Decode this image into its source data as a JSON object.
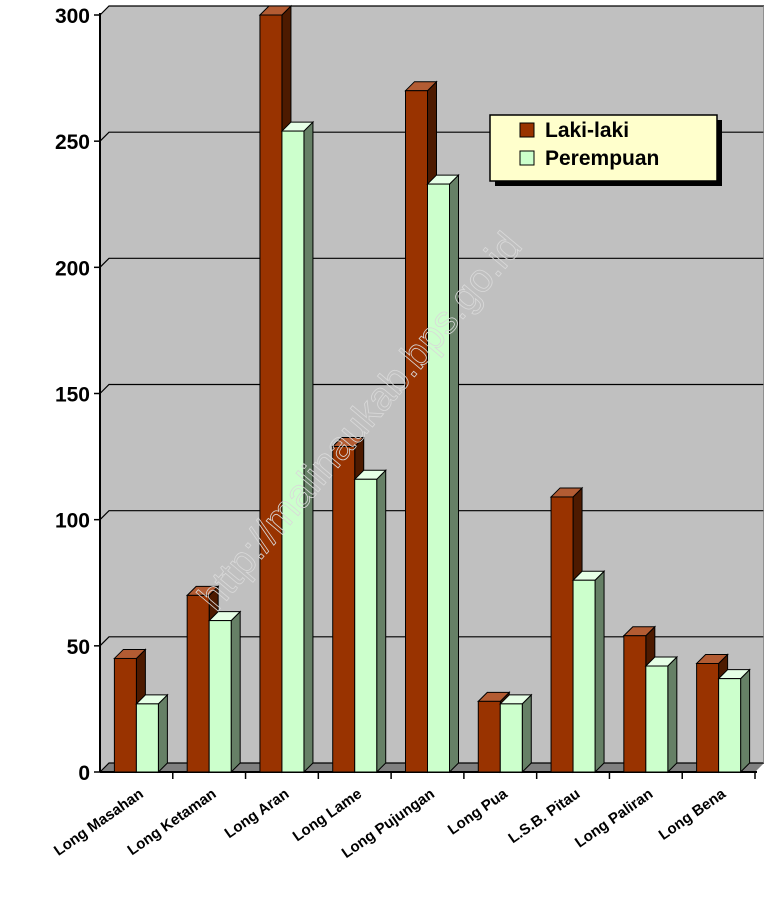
{
  "chart_data": {
    "type": "bar",
    "categories": [
      "Long Masahan",
      "Long Ketaman",
      "Long Aran",
      "Long Lame",
      "Long Pujungan",
      "Long Pua",
      "L.S.B. Pitau",
      "Long Paliran",
      "Long Bena"
    ],
    "series": [
      {
        "name": "Laki-laki",
        "values": [
          45,
          70,
          300,
          129,
          270,
          28,
          109,
          54,
          43
        ]
      },
      {
        "name": "Perempuan",
        "values": [
          27,
          60,
          254,
          116,
          233,
          27,
          76,
          42,
          37
        ]
      }
    ],
    "ylim": [
      0,
      300
    ],
    "yticks": [
      "0",
      "50",
      "100",
      "150",
      "200",
      "250",
      "300"
    ],
    "grid": true,
    "legend_position": "top-right",
    "watermark": "http://malinaukab.bps.go.id",
    "colors": {
      "plot_background": "#c0c0c0",
      "series_front": [
        "#993300",
        "#ccffcc"
      ],
      "series_side": [
        "#4d1a00",
        "#668066"
      ],
      "series_top": [
        "#b35c33",
        "#e6ffe6"
      ],
      "legend_background": "#ffffcc"
    }
  }
}
